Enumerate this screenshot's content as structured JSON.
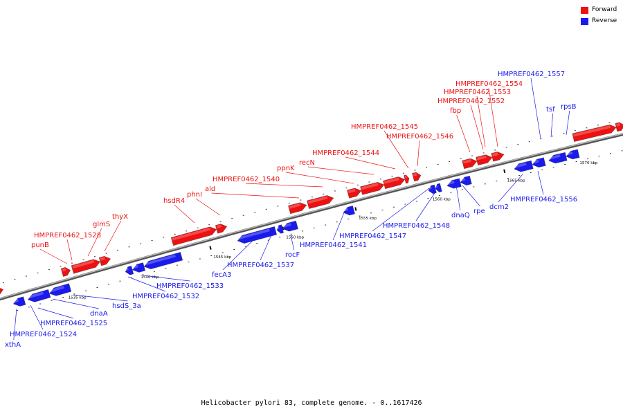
{
  "caption": "Helicobacter pylori 83, complete genome. - 0..1617426",
  "legend": [
    {
      "label": "Forward",
      "color": "#ee1111"
    },
    {
      "label": "Reverse",
      "color": "#1a1aee"
    }
  ],
  "colors": {
    "forward": "#ee1111",
    "reverse": "#1a1aee",
    "backbone": "#707070"
  },
  "scale_labels": [
    "1535 kbp",
    "1540 kbp",
    "1545 kbp",
    "1550 kbp",
    "1555 kbp",
    "1560 kbp",
    "1565 kbp",
    "1570 kbp"
  ],
  "genes": [
    {
      "name": "punB",
      "strand": "forward"
    },
    {
      "name": "HMPREF0462_1528",
      "strand": "forward"
    },
    {
      "name": "glmS",
      "strand": "forward"
    },
    {
      "name": "thyX",
      "strand": "forward"
    },
    {
      "name": "hsdR4",
      "strand": "forward"
    },
    {
      "name": "phnI",
      "strand": "forward"
    },
    {
      "name": "ald",
      "strand": "forward"
    },
    {
      "name": "HMPREF0462_1540",
      "strand": "forward"
    },
    {
      "name": "ppnK",
      "strand": "forward"
    },
    {
      "name": "recN",
      "strand": "forward"
    },
    {
      "name": "HMPREF0462_1544",
      "strand": "forward"
    },
    {
      "name": "HMPREF0462_1545",
      "strand": "forward"
    },
    {
      "name": "HMPREF0462_1546",
      "strand": "forward"
    },
    {
      "name": "fbp",
      "strand": "forward"
    },
    {
      "name": "HMPREF0462_1552",
      "strand": "forward"
    },
    {
      "name": "HMPREF0462_1553",
      "strand": "forward"
    },
    {
      "name": "HMPREF0462_1554",
      "strand": "forward"
    },
    {
      "name": "xthA",
      "strand": "reverse"
    },
    {
      "name": "HMPREF0462_1524",
      "strand": "reverse"
    },
    {
      "name": "HMPREF0462_1525",
      "strand": "reverse"
    },
    {
      "name": "dnaA",
      "strand": "reverse"
    },
    {
      "name": "hsdS_3a",
      "strand": "reverse"
    },
    {
      "name": "HMPREF0462_1532",
      "strand": "reverse"
    },
    {
      "name": "HMPREF0462_1533",
      "strand": "reverse"
    },
    {
      "name": "fecA3",
      "strand": "reverse"
    },
    {
      "name": "HMPREF0462_1537",
      "strand": "reverse"
    },
    {
      "name": "rocF",
      "strand": "reverse"
    },
    {
      "name": "HMPREF0462_1541",
      "strand": "reverse"
    },
    {
      "name": "HMPREF0462_1547",
      "strand": "reverse"
    },
    {
      "name": "HMPREF0462_1548",
      "strand": "reverse"
    },
    {
      "name": "dnaQ",
      "strand": "reverse"
    },
    {
      "name": "rpe",
      "strand": "reverse"
    },
    {
      "name": "dcm2",
      "strand": "reverse"
    },
    {
      "name": "HMPREF0462_1556",
      "strand": "reverse"
    },
    {
      "name": "HMPREF0462_1557",
      "strand": "reverse"
    },
    {
      "name": "tsf",
      "strand": "reverse"
    },
    {
      "name": "rpsB",
      "strand": "reverse"
    }
  ]
}
